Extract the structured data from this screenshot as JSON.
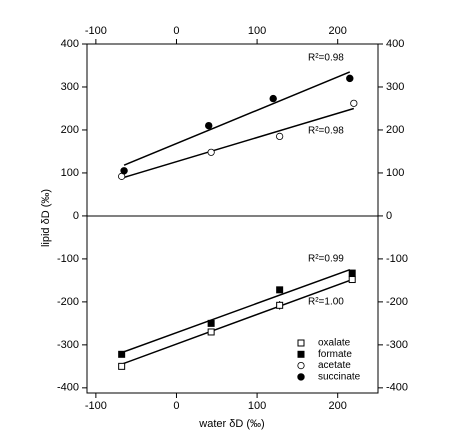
{
  "chart_data": {
    "type": "scatter",
    "xlabel": "water δD (‰)",
    "ylabel": "lipid δD (‰)",
    "xlim": [
      -111,
      250
    ],
    "xticks": [
      -100,
      0,
      100,
      200
    ],
    "ylim": [
      -412,
      400
    ],
    "yticks": [
      -400,
      -300,
      -200,
      -100,
      0,
      100,
      200,
      300,
      400
    ],
    "color": "#000000",
    "series": [
      {
        "name": "oxalate",
        "marker": "square-open",
        "x": [
          -68,
          43,
          128,
          218
        ],
        "values": [
          -350,
          -270,
          -208,
          -148
        ],
        "errors": [
          null,
          null,
          10,
          null
        ]
      },
      {
        "name": "formate",
        "marker": "square-filled",
        "x": [
          -68,
          43,
          128,
          218
        ],
        "values": [
          -322,
          -250,
          -172,
          -133
        ]
      },
      {
        "name": "acetate",
        "marker": "circle-open",
        "x": [
          -68,
          43,
          128,
          220
        ],
        "values": [
          92,
          148,
          185,
          262
        ]
      },
      {
        "name": "succinate",
        "marker": "circle-filled",
        "x": [
          -65,
          40,
          120,
          215
        ],
        "values": [
          105,
          210,
          273,
          320
        ]
      }
    ],
    "fit_lines": [
      {
        "x": [
          -65,
          215
        ],
        "values": [
          118,
          335
        ]
      },
      {
        "x": [
          -68,
          220
        ],
        "values": [
          88,
          250
        ]
      },
      {
        "x": [
          -68,
          215
        ],
        "values": [
          -318,
          -125
        ]
      },
      {
        "x": [
          -68,
          218
        ],
        "values": [
          -345,
          -148
        ]
      }
    ],
    "annotations": [
      "R²=0.98",
      "R²=0.98",
      "R²=0.99",
      "R²=1.00"
    ]
  }
}
